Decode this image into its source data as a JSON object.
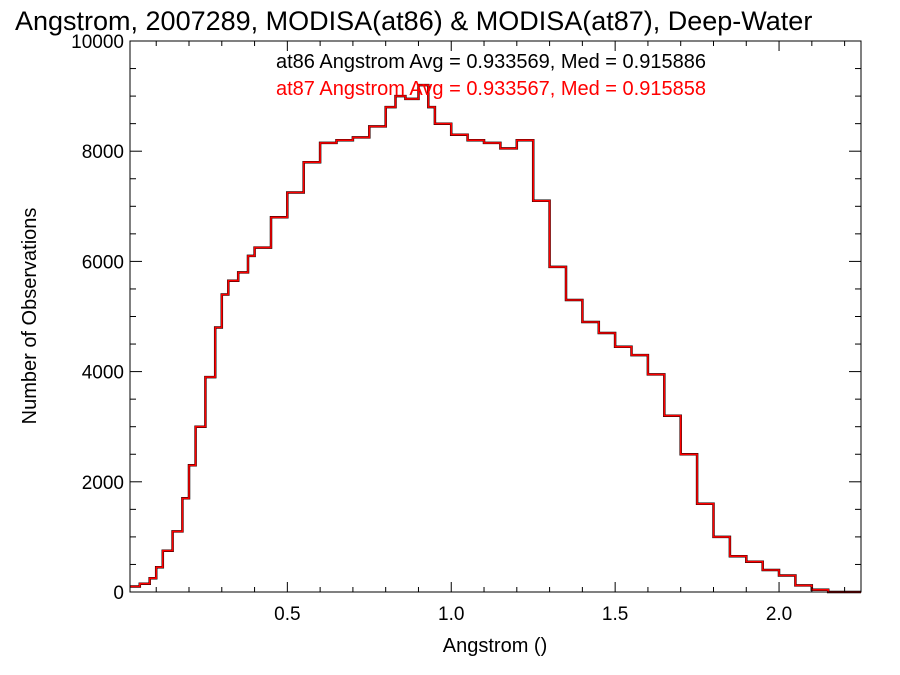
{
  "chart_data": {
    "type": "line",
    "step": true,
    "title": "Angstrom, 2007289, MODISA(at86) & MODISA(at87), Deep-Water",
    "xlabel": "Angstrom ()",
    "ylabel": "Number of Observations",
    "xlim": [
      0.02,
      2.25
    ],
    "ylim": [
      0,
      10000
    ],
    "xticks": [
      0.5,
      1.0,
      1.5,
      2.0
    ],
    "xtick_labels": [
      "0.5",
      "1.0",
      "1.5",
      "2.0"
    ],
    "yticks": [
      0,
      2000,
      4000,
      6000,
      8000,
      10000
    ],
    "ytick_labels": [
      "0",
      "2000",
      "4000",
      "6000",
      "8000",
      "10000"
    ],
    "grid": false,
    "legend": {
      "placement": "top-right",
      "entries": [
        {
          "text": "at86 Angstrom Avg = 0.933569, Med = 0.915886",
          "color": "#000000"
        },
        {
          "text": "at87 Angstrom Avg = 0.933567, Med = 0.915858",
          "color": "#ff0000"
        }
      ]
    },
    "x": [
      0.02,
      0.05,
      0.08,
      0.1,
      0.12,
      0.15,
      0.18,
      0.2,
      0.22,
      0.25,
      0.28,
      0.3,
      0.32,
      0.35,
      0.38,
      0.4,
      0.45,
      0.5,
      0.55,
      0.6,
      0.65,
      0.7,
      0.75,
      0.8,
      0.83,
      0.86,
      0.9,
      0.93,
      0.95,
      1.0,
      1.05,
      1.1,
      1.15,
      1.2,
      1.25,
      1.3,
      1.35,
      1.4,
      1.45,
      1.5,
      1.55,
      1.6,
      1.65,
      1.7,
      1.75,
      1.8,
      1.85,
      1.9,
      1.95,
      2.0,
      2.05,
      2.1,
      2.15,
      2.2,
      2.25
    ],
    "series": [
      {
        "color": "#000000",
        "values": [
          100,
          150,
          250,
          450,
          750,
          1100,
          1700,
          2300,
          3000,
          3900,
          4800,
          5400,
          5650,
          5800,
          6100,
          6250,
          6800,
          7250,
          7800,
          8150,
          8200,
          8250,
          8450,
          8800,
          9000,
          8950,
          9200,
          8800,
          8500,
          8300,
          8200,
          8150,
          8050,
          8200,
          7100,
          5900,
          5300,
          4900,
          4700,
          4450,
          4300,
          3950,
          3200,
          2500,
          1600,
          1000,
          650,
          550,
          400,
          300,
          120,
          40,
          0,
          0,
          0
        ]
      },
      {
        "color": "#ff0000",
        "values": [
          100,
          150,
          250,
          450,
          750,
          1100,
          1700,
          2300,
          3000,
          3900,
          4800,
          5400,
          5650,
          5800,
          6100,
          6250,
          6800,
          7250,
          7800,
          8150,
          8200,
          8250,
          8450,
          8800,
          9000,
          8950,
          9200,
          8800,
          8500,
          8300,
          8200,
          8150,
          8050,
          8200,
          7100,
          5900,
          5300,
          4900,
          4700,
          4450,
          4300,
          3950,
          3200,
          2500,
          1600,
          1000,
          650,
          550,
          400,
          300,
          120,
          40,
          0,
          0,
          0
        ]
      }
    ]
  }
}
